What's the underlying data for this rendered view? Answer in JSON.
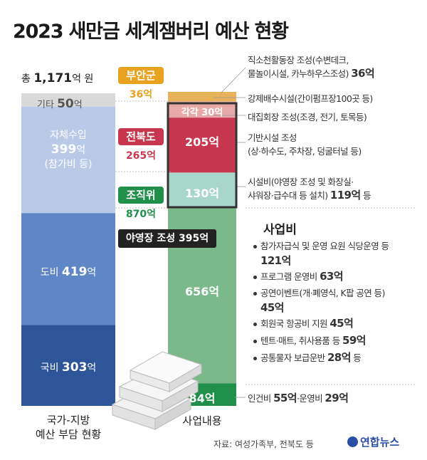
{
  "title": "2023 새만금 세계잼버리 예산 현황",
  "colors": {
    "etc": "#d9d9d9",
    "self": "#b9c9e8",
    "province": "#5f86c6",
    "national": "#2e559a",
    "buan": "#e8b25a",
    "each30": "#e7a9a7",
    "jeonbuk205": "#c7374e",
    "org130": "#a9d6cb",
    "business656": "#7bb98a",
    "labor84": "#1f8f4a",
    "yonhap": "#2a4ea3"
  },
  "left_total": {
    "prefix": "총",
    "value": "1,171",
    "unit": "억 원"
  },
  "left_segments": [
    {
      "label": "기타",
      "value": "50",
      "unit": "억"
    },
    {
      "label": "자체수입",
      "value": "399",
      "unit": "억",
      "sub": "(참가비 등)"
    },
    {
      "label": "도비",
      "value": "419",
      "unit": "억"
    },
    {
      "label": "국비",
      "value": "303",
      "unit": "억"
    }
  ],
  "left_caption": [
    "국가-지방",
    "예산 부담 현황"
  ],
  "badges": [
    {
      "name": "부안군",
      "amount": "36억",
      "color": "#e8a21f"
    },
    {
      "name": "전북도",
      "amount": "265억",
      "color": "#c7374e"
    },
    {
      "name": "조직위",
      "amount": "870억",
      "color": "#1f8f4a"
    }
  ],
  "right_segments": [
    {
      "label": "",
      "value": 36
    },
    {
      "label": "각각 30억",
      "value": 30
    },
    {
      "label": "",
      "value": 30
    },
    {
      "label": "205억",
      "value": 205
    },
    {
      "label": "130억",
      "value": 130
    },
    {
      "label": "656억",
      "value": 656
    },
    {
      "label": "84억",
      "value": 84
    }
  ],
  "campsite_label": "야영장 조성 395억",
  "right_caption": "사업내용",
  "annotations": {
    "a1_line1": "직소천활동장 조성(수변데크,",
    "a1_line2": "물놀이시설, 카누하우스조성)",
    "a1_amt": "36억",
    "a2": "강제배수시설(간이펌프장100곳 등)",
    "a3": "대집회장 조성(조경, 전기, 토목등)",
    "a4_line1": "기반시설 조성",
    "a4_line2": "(상·하수도, 주차장, 덩굴터널 등)",
    "a5_line1": "시설비(야영장 조성 및 화장실·",
    "a5_line2": "샤워장·급수대 등 설치)",
    "a5_amt": "119억",
    "a5_tail": "등",
    "biz_title": "사업비",
    "biz": [
      {
        "text": "참가자급식 및 운영 요원 식당운영 등",
        "amt": "121억",
        "tail": "",
        "amt_newline": true
      },
      {
        "text": "프로그램 운영비",
        "amt": "63억",
        "tail": "",
        "amt_newline": false
      },
      {
        "text": "공연이벤트(개·폐영식, K팝 공연 등)",
        "amt": "45억",
        "tail": "",
        "amt_newline": true
      },
      {
        "text": "회원국 항공비 지원",
        "amt": "45억",
        "tail": "",
        "amt_newline": false
      },
      {
        "text": "텐트·매트, 취사용품 등",
        "amt": "59억",
        "tail": "",
        "amt_newline": false
      },
      {
        "text": "공통물자 보급운반",
        "amt": "28억",
        "tail": "등",
        "amt_newline": false
      }
    ],
    "labor_text1": "인건비",
    "labor_amt1": "55억",
    "labor_mid": "·운영비",
    "labor_amt2": "29억"
  },
  "source": "자료: 여성가족부, 전북도 등",
  "logo": "연합뉴스",
  "chart_data": [
    {
      "type": "bar",
      "title": "국가-지방 예산 부담 현황",
      "total": "총 1,171억 원",
      "categories": [
        "기타",
        "자체수입(참가비 등)",
        "도비",
        "국비"
      ],
      "values": [
        50,
        399,
        419,
        303
      ],
      "unit": "억"
    },
    {
      "type": "bar",
      "title": "사업내용",
      "categories": [
        "직소천활동장 조성",
        "강제배수시설",
        "대집회장 조성",
        "기반시설 조성",
        "시설비",
        "사업비",
        "인건비·운영비"
      ],
      "values": [
        36,
        30,
        30,
        205,
        130,
        656,
        84
      ],
      "funding": {
        "부안군": 36,
        "전북도": 265,
        "조직위": 870
      },
      "unit": "억"
    }
  ]
}
